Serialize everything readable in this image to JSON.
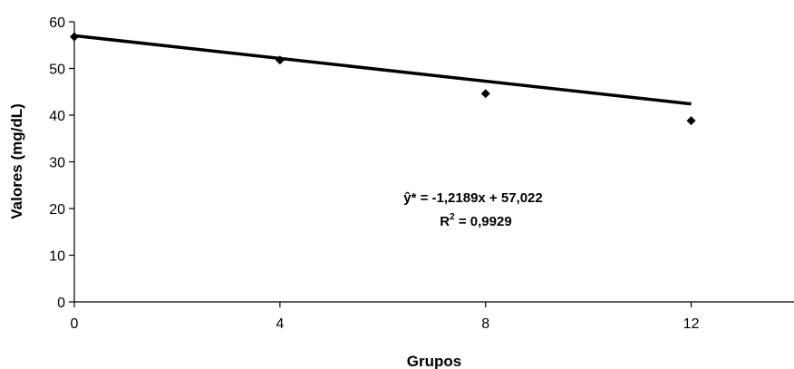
{
  "chart_data": {
    "type": "scatter",
    "xlabel": "Grupos",
    "ylabel": "Valores (mg/dL)",
    "xlim": [
      0,
      14
    ],
    "ylim": [
      0,
      60
    ],
    "x_ticks": [
      0,
      4,
      8,
      12
    ],
    "y_ticks": [
      0,
      10,
      20,
      30,
      40,
      50,
      60
    ],
    "grid": false,
    "legend": "none",
    "series": [
      {
        "x": [
          0,
          4,
          8,
          12
        ],
        "y": [
          56.8,
          51.8,
          44.6,
          38.8
        ],
        "marker": "diamond",
        "color": "#000000"
      }
    ],
    "trendline": {
      "slope": -1.2189,
      "intercept": 57.022,
      "x_range": [
        0,
        12
      ],
      "color": "#000000"
    },
    "annotations": {
      "equation": "ŷ* = -1,2189x + 57,022",
      "r2_prefix": "R",
      "r2_exp": "2",
      "r2_value": " = 0,9929"
    }
  }
}
